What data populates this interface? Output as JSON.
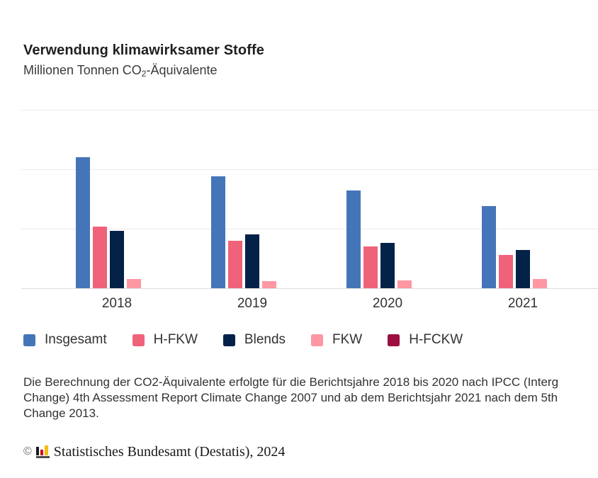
{
  "header": {
    "title": "Verwendung klimawirksamer Stoffe",
    "subtitle_prefix": "Millionen Tonnen CO",
    "subtitle_sub": "2",
    "subtitle_suffix": "-Äquivalente"
  },
  "chart_data": {
    "type": "bar",
    "title": "Verwendung klimawirksamer Stoffe",
    "subtitle": "Millionen Tonnen CO₂-Äquivalente",
    "categories": [
      "2018",
      "2019",
      "2020",
      "2021"
    ],
    "series": [
      {
        "name": "Insgesamt",
        "color": "#4575B9",
        "values": [
          11.0,
          9.4,
          8.2,
          6.9
        ]
      },
      {
        "name": "H-FKW",
        "color": "#F0627A",
        "values": [
          5.2,
          4.0,
          3.5,
          2.8
        ]
      },
      {
        "name": "Blends",
        "color": "#042248",
        "values": [
          4.8,
          4.5,
          3.8,
          3.2
        ]
      },
      {
        "name": "FKW",
        "color": "#FE97A2",
        "values": [
          0.8,
          0.6,
          0.65,
          0.8
        ]
      },
      {
        "name": "H-FCKW",
        "color": "#9D0F41",
        "values": [
          0,
          0,
          0,
          0
        ]
      }
    ],
    "xlabel": "",
    "ylabel": "",
    "ylim": [
      0,
      15
    ],
    "gridline_step": 5,
    "grid": "horizontal gridlines on, y tick labels not visible (cropped)",
    "legend_position": "bottom-left"
  },
  "legend": {
    "items": [
      "Insgesamt",
      "H-FKW",
      "Blends",
      "FKW",
      "H-FCKW"
    ]
  },
  "footnote": {
    "lines": [
      "Die Berechnung der CO2-Äquivalente erfolgte für die Berichtsjahre 2018 bis 2020 nach IPCC (Interg",
      "Change) 4th Assessment Report Climate Change 2007 und ab dem Berichtsjahr 2021 nach dem 5th",
      "Change 2013."
    ]
  },
  "copyright": {
    "symbol": "©",
    "text": "Statistisches Bundesamt (Destatis), 2024",
    "logo": "destatis-logo"
  }
}
